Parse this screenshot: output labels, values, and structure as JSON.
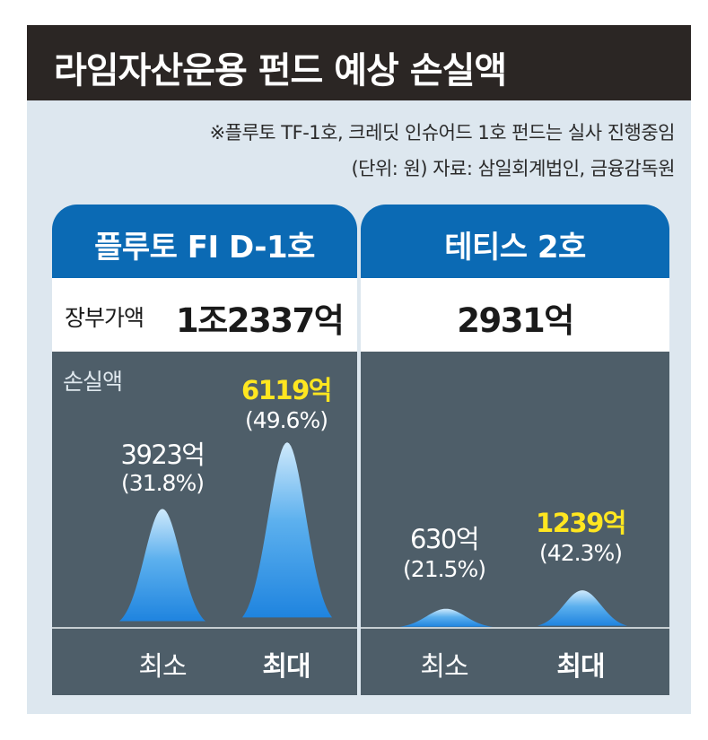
{
  "title": "라임자산운용 펀드 예상 손실액",
  "notes": [
    "※플루토 TF-1호, 크레딧 인슈어드 1호 펀드는 실사 진행중임",
    "(단위: 원) 자료: 삼일회계법인, 금융감독원"
  ],
  "book_value_label": "장부가액",
  "loss_label": "손실액",
  "categories": [
    "최소",
    "최대"
  ],
  "colors": {
    "title_bg": "#2b2624",
    "header_blue": "#0b6ab4",
    "plot_bg": "#4e5e69",
    "peak_blue": "#2a8fe4",
    "highlight_yellow": "#ffe620"
  },
  "chart_data": [
    {
      "type": "area",
      "title": "플루토 FI D-1호",
      "book_value": "1조2337억",
      "categories": [
        "최소",
        "최대"
      ],
      "values": [
        3923,
        6119
      ],
      "value_labels": [
        "3923억",
        "6119억"
      ],
      "ratios": [
        31.8,
        49.6
      ],
      "ratio_labels": [
        "(31.8%)",
        "(49.6%)"
      ],
      "highlight": [
        false,
        true
      ]
    },
    {
      "type": "area",
      "title": "테티스 2호",
      "book_value": "2931억",
      "categories": [
        "최소",
        "최대"
      ],
      "values": [
        630,
        1239
      ],
      "value_labels": [
        "630억",
        "1239억"
      ],
      "ratios": [
        21.5,
        42.3
      ],
      "ratio_labels": [
        "(21.5%)",
        "(42.3%)"
      ],
      "highlight": [
        false,
        true
      ]
    }
  ]
}
